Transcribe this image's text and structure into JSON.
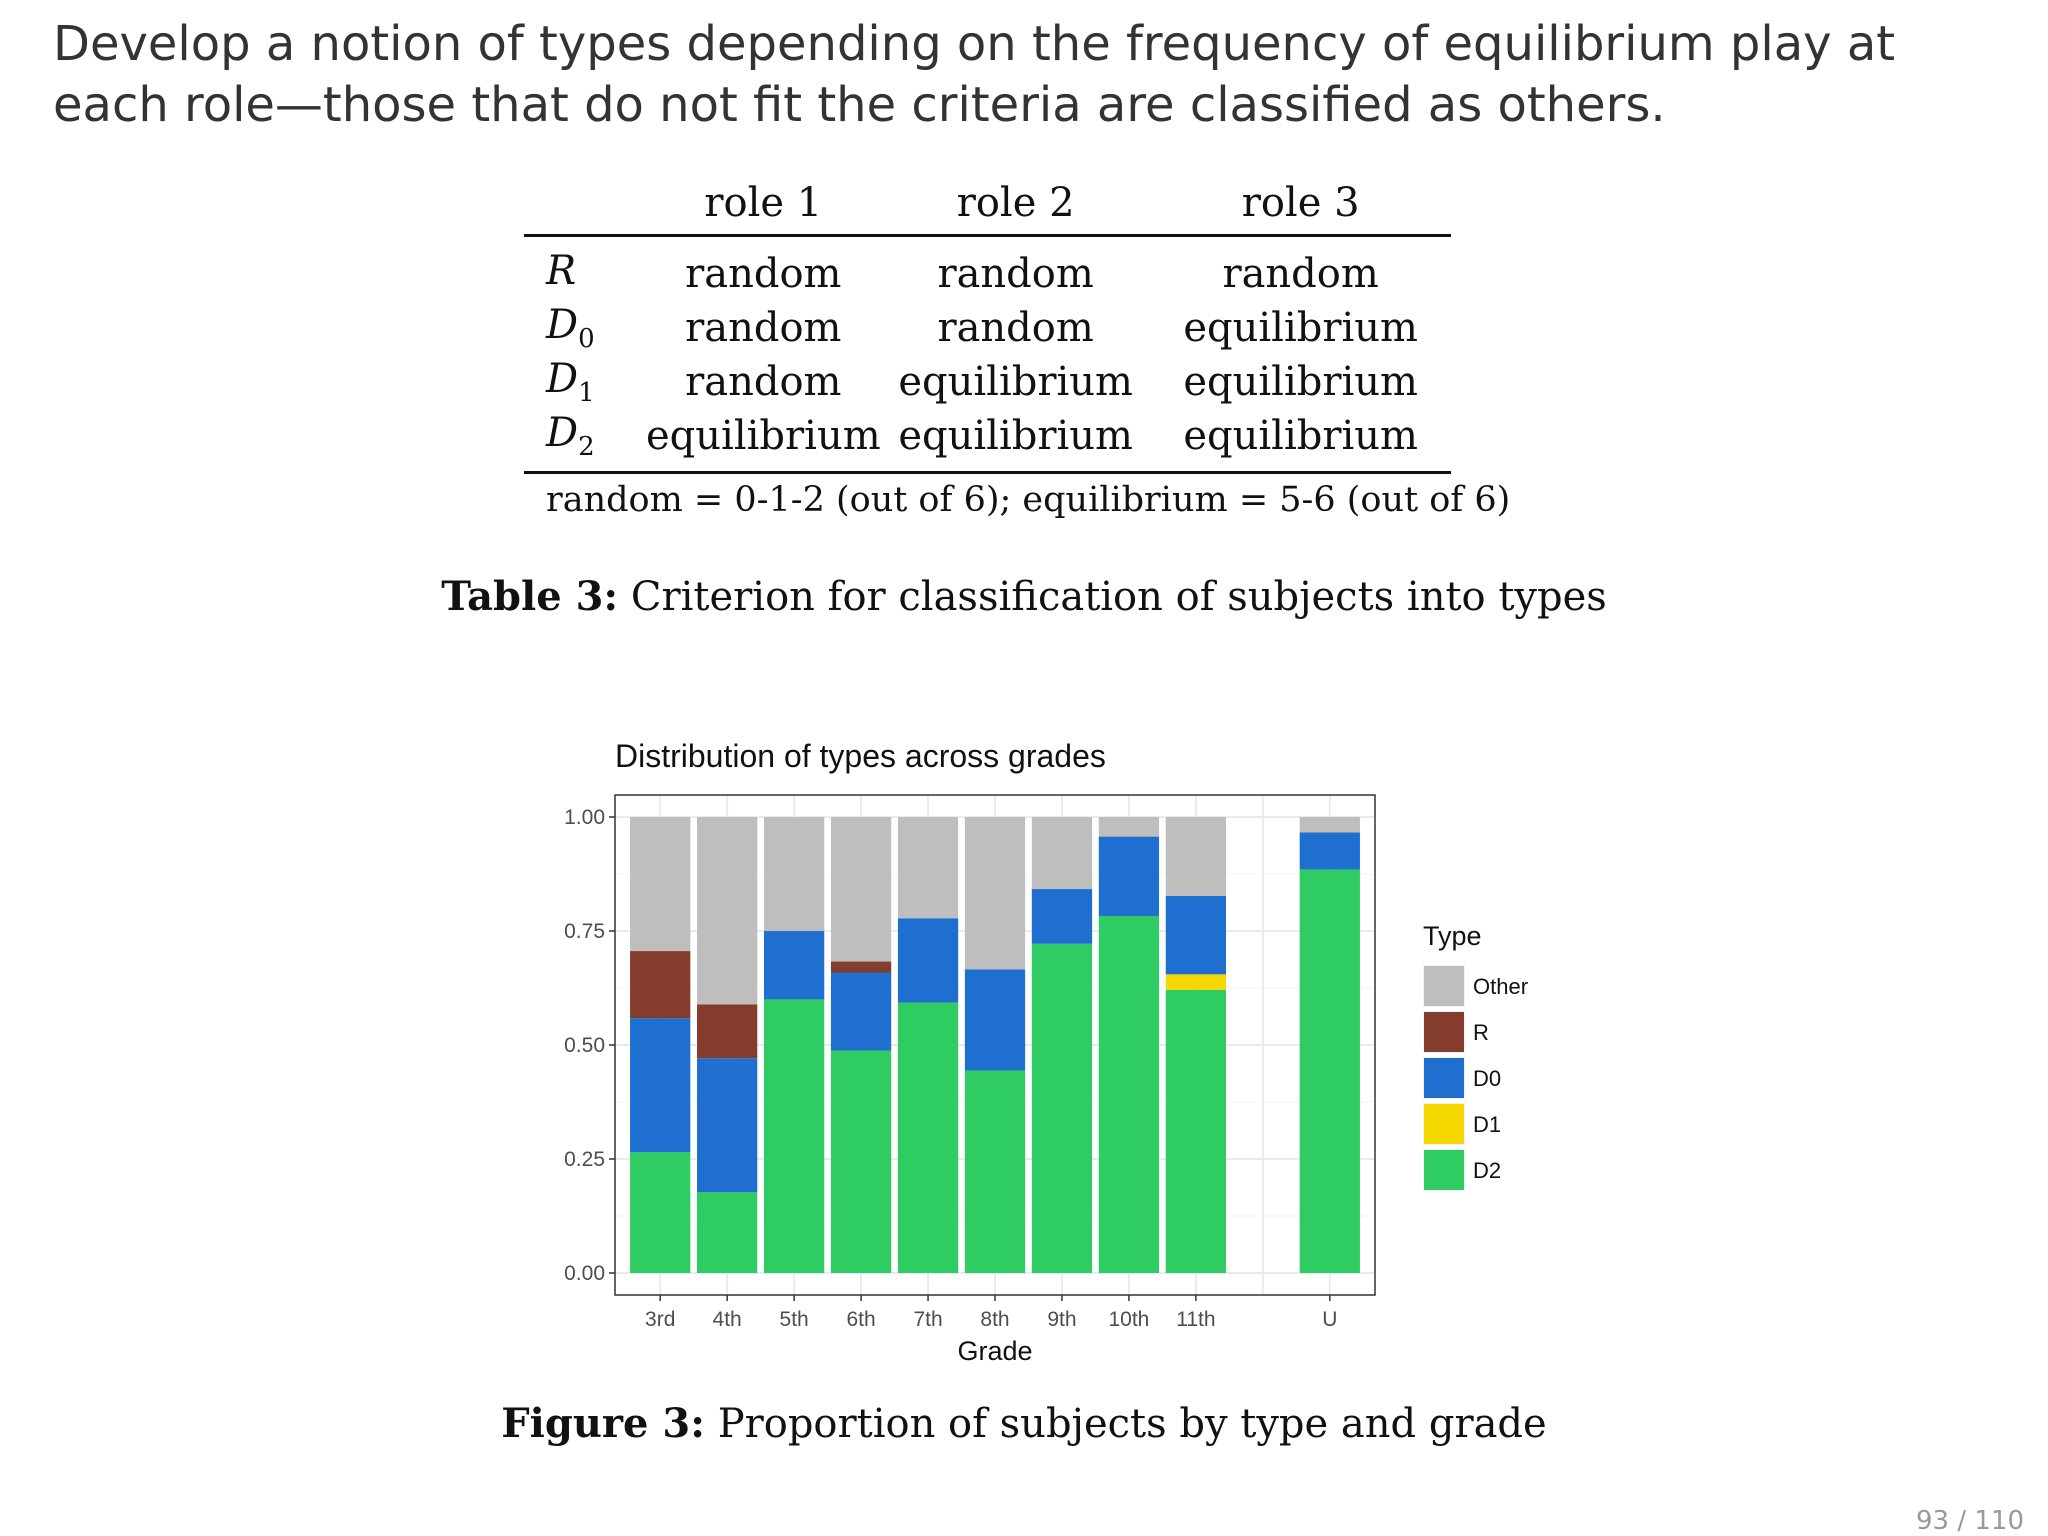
{
  "intro_text": "Develop a notion of types depending on the frequency of equilibrium play at each role—those that do not fit the criteria are classified as others.",
  "criteria_table": {
    "headers": [
      "role 1",
      "role 2",
      "role 3"
    ],
    "rows": [
      {
        "type": "R",
        "sub": "",
        "values": [
          "random",
          "random",
          "random"
        ]
      },
      {
        "type": "D",
        "sub": "0",
        "values": [
          "random",
          "random",
          "equilibrium"
        ]
      },
      {
        "type": "D",
        "sub": "1",
        "values": [
          "random",
          "equilibrium",
          "equilibrium"
        ]
      },
      {
        "type": "D",
        "sub": "2",
        "values": [
          "equilibrium",
          "equilibrium",
          "equilibrium"
        ]
      }
    ],
    "note": "random = 0-1-2 (out of 6); equilibrium = 5-6 (out of 6)"
  },
  "table_caption": {
    "label": "Table 3:",
    "text": "Criterion for classification of subjects into types"
  },
  "figure_caption": {
    "label": "Figure 3:",
    "text": "Proportion of subjects by type and grade"
  },
  "page_number": "93 / 110",
  "chart_data": {
    "type": "bar",
    "stacked": true,
    "title": "Distribution of types across grades",
    "xlabel": "Grade",
    "ylabel": "",
    "ylim": [
      0,
      1
    ],
    "yticks": [
      "0.00",
      "0.25",
      "0.50",
      "0.75",
      "1.00"
    ],
    "grid": true,
    "legend_title": "Type",
    "legend_position": "right",
    "categories": [
      "3rd",
      "4th",
      "5th",
      "6th",
      "7th",
      "8th",
      "9th",
      "10th",
      "11th",
      "",
      "U"
    ],
    "series": [
      {
        "name": "D2",
        "color": "#2ecc63",
        "values": [
          0.265,
          0.177,
          0.6,
          0.488,
          0.593,
          0.444,
          0.722,
          0.783,
          0.621,
          0,
          0.885
        ]
      },
      {
        "name": "D1",
        "color": "#f5d800",
        "values": [
          0,
          0,
          0,
          0,
          0,
          0,
          0,
          0,
          0.034,
          0,
          0
        ]
      },
      {
        "name": "D0",
        "color": "#1f6fd1",
        "values": [
          0.294,
          0.294,
          0.15,
          0.171,
          0.185,
          0.222,
          0.12,
          0.174,
          0.172,
          0,
          0.081
        ]
      },
      {
        "name": "R",
        "color": "#843c2c",
        "values": [
          0.147,
          0.118,
          0,
          0.024,
          0,
          0,
          0,
          0,
          0,
          0,
          0
        ]
      },
      {
        "name": "Other",
        "color": "#bebebe",
        "values": [
          0.294,
          0.411,
          0.25,
          0.317,
          0.222,
          0.334,
          0.158,
          0.043,
          0.173,
          0,
          0.034
        ]
      }
    ],
    "legend_order": [
      "Other",
      "R",
      "D0",
      "D1",
      "D2"
    ]
  }
}
